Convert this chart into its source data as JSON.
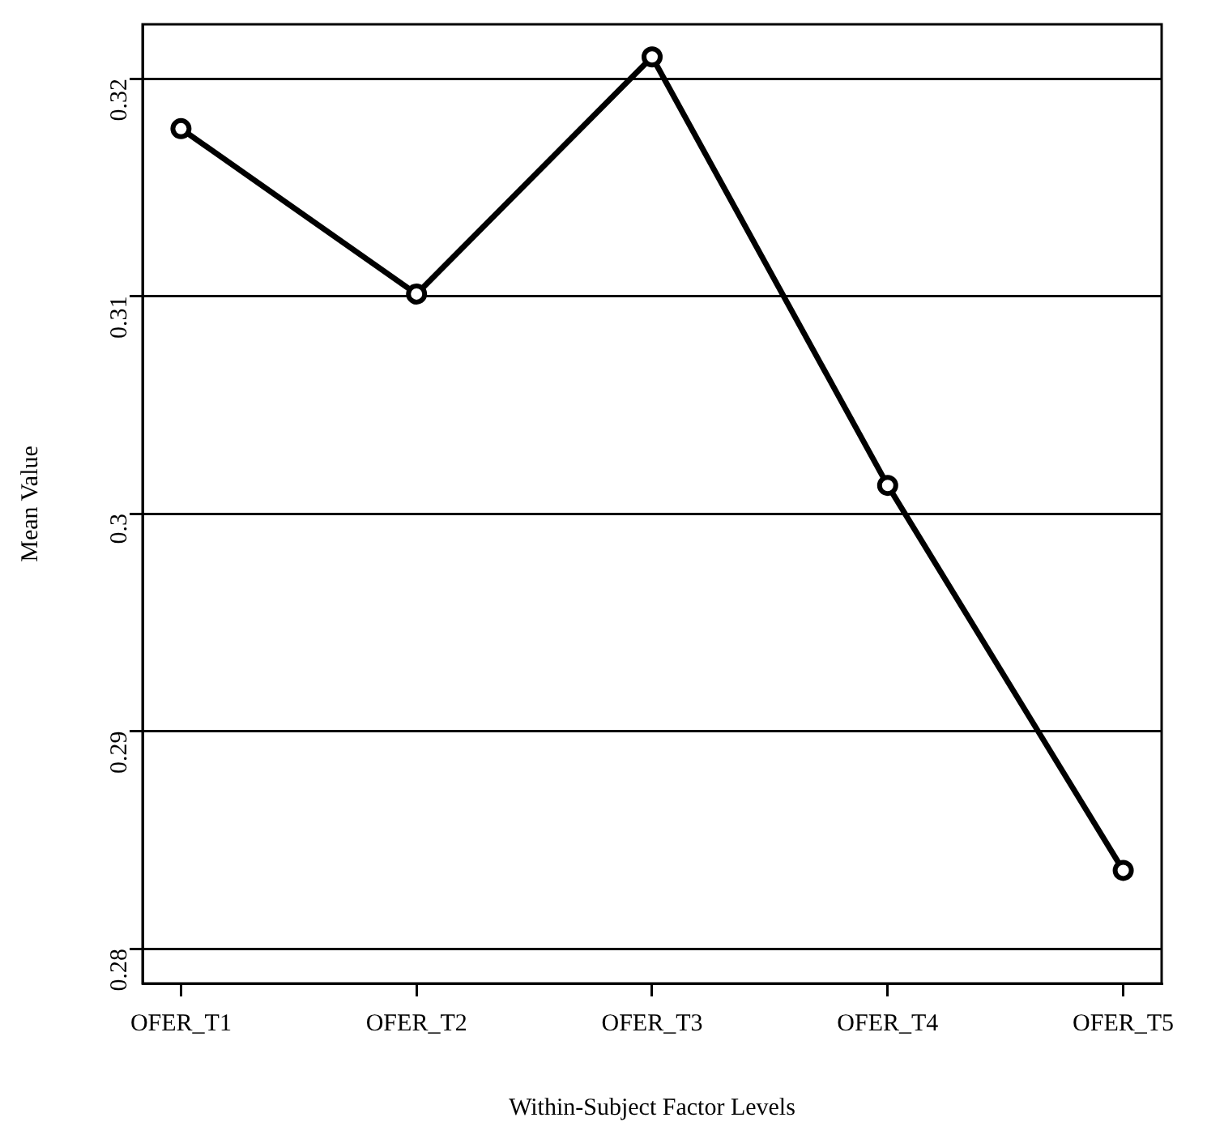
{
  "chart_data": {
    "type": "line",
    "xlabel": "Within-Subject Factor Levels",
    "ylabel": "Mean Value",
    "categories": [
      "OFER_T1",
      "OFER_T2",
      "OFER_T3",
      "OFER_T4",
      "OFER_T5"
    ],
    "series": [
      {
        "color": "#000000",
        "values": [
          0.3177,
          0.3101,
          0.321,
          0.3013,
          0.2836
        ]
      }
    ],
    "ylim": [
      0.2784,
      0.3225
    ],
    "yticks": [
      0.28,
      0.29,
      0.3,
      0.31,
      0.32
    ],
    "grid": "y",
    "legend": false,
    "marker": "circle",
    "line_style": "solid"
  }
}
